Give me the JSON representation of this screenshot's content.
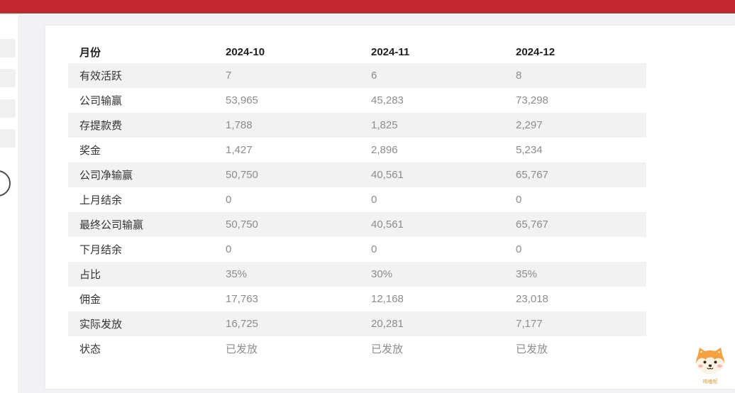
{
  "topbar": {
    "color": "#c2262e"
  },
  "sidebar": {
    "skeleton_items": 4
  },
  "table": {
    "header": [
      "月份",
      "2024-10",
      "2024-11",
      "2024-12"
    ],
    "rows": [
      {
        "label": "有效活跃",
        "values": [
          "7",
          "6",
          "8"
        ]
      },
      {
        "label": "公司输赢",
        "values": [
          "53,965",
          "45,283",
          "73,298"
        ]
      },
      {
        "label": "存提款费",
        "values": [
          "1,788",
          "1,825",
          "2,297"
        ]
      },
      {
        "label": "奖金",
        "values": [
          "1,427",
          "2,896",
          "5,234"
        ]
      },
      {
        "label": "公司净输赢",
        "values": [
          "50,750",
          "40,561",
          "65,767"
        ]
      },
      {
        "label": "上月结余",
        "values": [
          "0",
          "0",
          "0"
        ]
      },
      {
        "label": "最终公司输赢",
        "values": [
          "50,750",
          "40,561",
          "65,767"
        ]
      },
      {
        "label": "下月结余",
        "values": [
          "0",
          "0",
          "0"
        ]
      },
      {
        "label": "占比",
        "values": [
          "35%",
          "30%",
          "35%"
        ]
      },
      {
        "label": "佣金",
        "values": [
          "17,763",
          "12,168",
          "23,018"
        ]
      },
      {
        "label": "实际发放",
        "values": [
          "16,725",
          "20,281",
          "7,177"
        ]
      },
      {
        "label": "状态",
        "values": [
          "已发放",
          "已发放",
          "已发放"
        ]
      }
    ]
  },
  "mascot": {
    "label": "唠嗑呢"
  }
}
